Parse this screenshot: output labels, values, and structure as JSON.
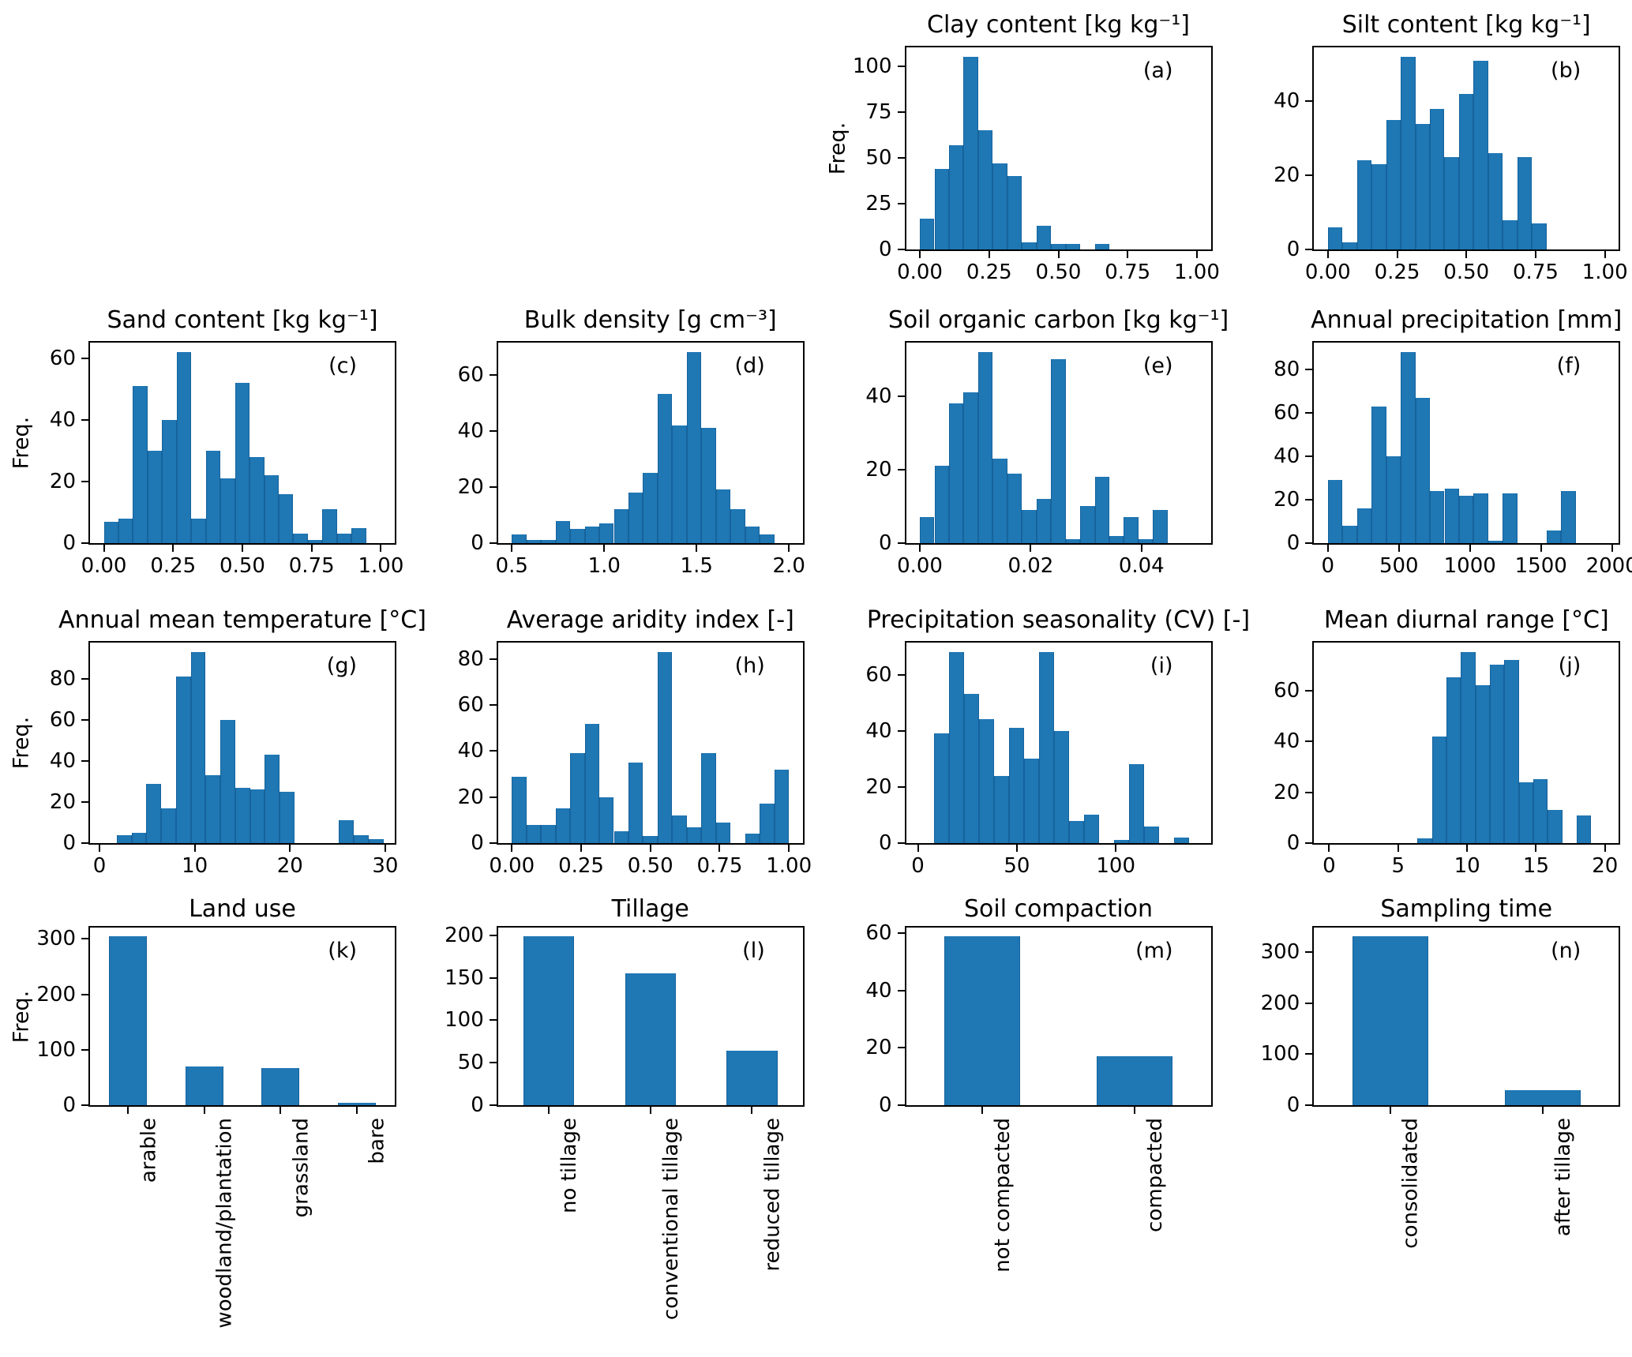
{
  "figure": {
    "bar_color": "#1f77b4",
    "bar_edge_color": "#16639c",
    "text_color": "#000000",
    "background": "#ffffff",
    "freq_label": "Freq."
  },
  "chart_data": [
    {
      "id": "a",
      "type": "histogram",
      "panel_label": "(a)",
      "title": "Clay content [kg kg⁻¹]",
      "ylabel": "Freq.",
      "bin_start": 0,
      "bin_width": 0.0526,
      "values": [
        17,
        44,
        57,
        105,
        65,
        47,
        40,
        4,
        13,
        3,
        3,
        0,
        3,
        0,
        0,
        0,
        0,
        0,
        0
      ],
      "xlim": [
        -0.05,
        1.05
      ],
      "ylim": [
        0,
        110.3
      ],
      "xticks": [
        0,
        0.25,
        0.5,
        0.75,
        1
      ],
      "xtick_labels": [
        "0.00",
        "0.25",
        "0.50",
        "0.75",
        "1.00"
      ],
      "yticks": [
        0,
        25,
        50,
        75,
        100
      ],
      "ytick_labels": [
        "0",
        "25",
        "50",
        "75",
        "100"
      ]
    },
    {
      "id": "b",
      "type": "histogram",
      "panel_label": "(b)",
      "title": "Silt content [kg kg⁻¹]",
      "ylabel": "",
      "bin_start": 0,
      "bin_width": 0.0526,
      "values": [
        6,
        2,
        24,
        23,
        35,
        52,
        34,
        38,
        25,
        42,
        51,
        26,
        8,
        25,
        7,
        0,
        0,
        0,
        0
      ],
      "xlim": [
        -0.05,
        1.05
      ],
      "ylim": [
        0,
        54.6
      ],
      "xticks": [
        0,
        0.25,
        0.5,
        0.75,
        1
      ],
      "xtick_labels": [
        "0.00",
        "0.25",
        "0.50",
        "0.75",
        "1.00"
      ],
      "yticks": [
        0,
        20,
        40
      ],
      "ytick_labels": [
        "0",
        "20",
        "40"
      ]
    },
    {
      "id": "c",
      "type": "histogram",
      "panel_label": "(c)",
      "title": "Sand content [kg kg⁻¹]",
      "ylabel": "Freq.",
      "bin_start": 0,
      "bin_width": 0.0526,
      "values": [
        7,
        8,
        51,
        30,
        40,
        62,
        8,
        30,
        21,
        52,
        28,
        22,
        16,
        3,
        1,
        11,
        3,
        5,
        0
      ],
      "xlim": [
        -0.05,
        1.05
      ],
      "ylim": [
        0,
        65.1
      ],
      "xticks": [
        0,
        0.25,
        0.5,
        0.75,
        1
      ],
      "xtick_labels": [
        "0.00",
        "0.25",
        "0.50",
        "0.75",
        "1.00"
      ],
      "yticks": [
        0,
        20,
        40,
        60
      ],
      "ytick_labels": [
        "0",
        "20",
        "40",
        "60"
      ]
    },
    {
      "id": "d",
      "type": "histogram",
      "panel_label": "(d)",
      "title": "Bulk density [g cm⁻³]",
      "ylabel": "",
      "bin_start": 0.5,
      "bin_width": 0.0789,
      "values": [
        3,
        1,
        1,
        8,
        5,
        6,
        7,
        12,
        18,
        25,
        53,
        42,
        68,
        41,
        19,
        12,
        6,
        3,
        0
      ],
      "xlim": [
        0.425,
        2.075
      ],
      "ylim": [
        0,
        71.4
      ],
      "xticks": [
        0.5,
        1,
        1.5,
        2
      ],
      "xtick_labels": [
        "0.5",
        "1.0",
        "1.5",
        "2.0"
      ],
      "yticks": [
        0,
        20,
        40,
        60
      ],
      "ytick_labels": [
        "0",
        "20",
        "40",
        "60"
      ]
    },
    {
      "id": "e",
      "type": "histogram",
      "panel_label": "(e)",
      "title": "Soil organic carbon [kg kg⁻¹]",
      "ylabel": "",
      "bin_start": 0,
      "bin_width": 0.00263,
      "values": [
        7,
        21,
        38,
        41,
        52,
        23,
        19,
        9,
        12,
        50,
        1,
        10,
        18,
        2,
        7,
        1,
        9,
        0,
        0
      ],
      "xlim": [
        -0.0025,
        0.0525
      ],
      "ylim": [
        0,
        54.6
      ],
      "xticks": [
        0,
        0.02,
        0.04
      ],
      "xtick_labels": [
        "0.00",
        "0.02",
        "0.04"
      ],
      "yticks": [
        0,
        20,
        40
      ],
      "ytick_labels": [
        "0",
        "20",
        "40"
      ]
    },
    {
      "id": "f",
      "type": "histogram",
      "panel_label": "(f)",
      "title": "Annual precipitation [mm]",
      "ylabel": "",
      "bin_start": 0,
      "bin_width": 102.6,
      "values": [
        29,
        8,
        16,
        63,
        40,
        88,
        67,
        24,
        25,
        22,
        23,
        1,
        23,
        0,
        0,
        6,
        24,
        0,
        0
      ],
      "xlim": [
        -97.5,
        2047.5
      ],
      "ylim": [
        0,
        92.4
      ],
      "xticks": [
        0,
        500,
        1000,
        1500,
        2000
      ],
      "xtick_labels": [
        "0",
        "500",
        "1000",
        "1500",
        "2000"
      ],
      "yticks": [
        0,
        20,
        40,
        60,
        80
      ],
      "ytick_labels": [
        "0",
        "20",
        "40",
        "60",
        "80"
      ]
    },
    {
      "id": "g",
      "type": "histogram",
      "panel_label": "(g)",
      "title": "Annual mean temperature [°C]",
      "ylabel": "Freq.",
      "bin_start": 1.8,
      "bin_width": 1.5556,
      "values": [
        4,
        5,
        29,
        17,
        81,
        93,
        33,
        60,
        27,
        26,
        43,
        25,
        0,
        0,
        0,
        11,
        4,
        2
      ],
      "xlim": [
        -1,
        31
      ],
      "ylim": [
        0,
        97.7
      ],
      "xticks": [
        0,
        10,
        20,
        30
      ],
      "xtick_labels": [
        "0",
        "10",
        "20",
        "30"
      ],
      "yticks": [
        0,
        20,
        40,
        60,
        80
      ],
      "ytick_labels": [
        "0",
        "20",
        "40",
        "60",
        "80"
      ]
    },
    {
      "id": "h",
      "type": "histogram",
      "panel_label": "(h)",
      "title": "Average aridity index [-]",
      "ylabel": "",
      "bin_start": 0,
      "bin_width": 0.0526,
      "values": [
        29,
        8,
        8,
        15,
        39,
        52,
        20,
        5,
        35,
        3,
        83,
        12,
        7,
        39,
        9,
        0,
        4,
        17,
        32
      ],
      "xlim": [
        -0.05,
        1.05
      ],
      "ylim": [
        0,
        87.2
      ],
      "xticks": [
        0,
        0.25,
        0.5,
        0.75,
        1
      ],
      "xtick_labels": [
        "0.00",
        "0.25",
        "0.50",
        "0.75",
        "1.00"
      ],
      "yticks": [
        0,
        20,
        40,
        60,
        80
      ],
      "ytick_labels": [
        "0",
        "20",
        "40",
        "60",
        "80"
      ]
    },
    {
      "id": "i",
      "type": "histogram",
      "panel_label": "(i)",
      "title": "Precipitation seasonality (CV) [-]",
      "ylabel": "",
      "bin_start": 8,
      "bin_width": 7.6,
      "values": [
        39,
        68,
        53,
        44,
        24,
        41,
        30,
        68,
        40,
        8,
        10,
        0,
        1,
        28,
        6,
        0,
        2
      ],
      "xlim": [
        -6,
        148
      ],
      "ylim": [
        0,
        71.4
      ],
      "xticks": [
        0,
        50,
        100
      ],
      "xtick_labels": [
        "0",
        "50",
        "100"
      ],
      "yticks": [
        0,
        20,
        40,
        60
      ],
      "ytick_labels": [
        "0",
        "20",
        "40",
        "60"
      ]
    },
    {
      "id": "j",
      "type": "histogram",
      "panel_label": "(j)",
      "title": "Mean diurnal range [°C]",
      "ylabel": "",
      "bin_start": 6.4,
      "bin_width": 1.05,
      "values": [
        2,
        42,
        65,
        75,
        62,
        70,
        72,
        24,
        25,
        13,
        0,
        11
      ],
      "xlim": [
        -1.1,
        21
      ],
      "ylim": [
        0,
        78.8
      ],
      "xticks": [
        0,
        5,
        10,
        15,
        20
      ],
      "xtick_labels": [
        "0",
        "5",
        "10",
        "15",
        "20"
      ],
      "yticks": [
        0,
        20,
        40,
        60
      ],
      "ytick_labels": [
        "0",
        "20",
        "40",
        "60"
      ]
    },
    {
      "id": "k",
      "type": "bar",
      "panel_label": "(k)",
      "title": "Land use",
      "ylabel": "Freq.",
      "categories": [
        "arable",
        "woodland/plantation",
        "grassland",
        "bare"
      ],
      "values": [
        305,
        70,
        67,
        4
      ],
      "ylim": [
        0,
        320.3
      ],
      "yticks": [
        0,
        100,
        200,
        300
      ],
      "ytick_labels": [
        "0",
        "100",
        "200",
        "300"
      ]
    },
    {
      "id": "l",
      "type": "bar",
      "panel_label": "(l)",
      "title": "Tillage",
      "ylabel": "",
      "categories": [
        "no tillage",
        "conventional tillage",
        "reduced tillage"
      ],
      "values": [
        199,
        155,
        64
      ],
      "ylim": [
        0,
        209
      ],
      "yticks": [
        0,
        50,
        100,
        150,
        200
      ],
      "ytick_labels": [
        "0",
        "50",
        "100",
        "150",
        "200"
      ]
    },
    {
      "id": "m",
      "type": "bar",
      "panel_label": "(m)",
      "title": "Soil compaction",
      "ylabel": "",
      "categories": [
        "not compacted",
        "compacted"
      ],
      "values": [
        59,
        17
      ],
      "ylim": [
        0,
        62
      ],
      "yticks": [
        0,
        20,
        40,
        60
      ],
      "ytick_labels": [
        "0",
        "20",
        "40",
        "60"
      ]
    },
    {
      "id": "n",
      "type": "bar",
      "panel_label": "(n)",
      "title": "Sampling time",
      "ylabel": "",
      "categories": [
        "consolidated",
        "after tillage"
      ],
      "values": [
        332,
        30
      ],
      "ylim": [
        0,
        348.6
      ],
      "yticks": [
        0,
        100,
        200,
        300
      ],
      "ytick_labels": [
        "0",
        "100",
        "200",
        "300"
      ]
    }
  ]
}
